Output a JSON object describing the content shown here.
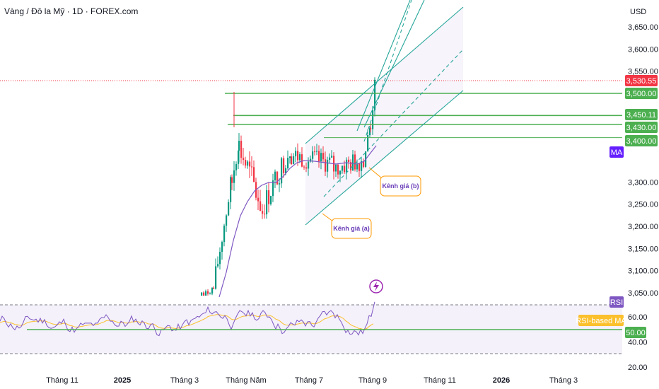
{
  "header": {
    "title": "Vàng / Đô la Mỹ · 1D · FOREX.com",
    "currency": "USD"
  },
  "colors": {
    "up": "#089981",
    "down": "#f23645",
    "ma": "#7e57c2",
    "hline": "#4caf50",
    "channel": "#26a69a",
    "rsi": "#7e57c2",
    "rsi_ma": "#fbc02d",
    "current": "#f23645"
  },
  "chart_data": {
    "type": "candlestick",
    "price_axis": {
      "ticks": [
        "3,650.00",
        "3,600.00",
        "3,550.00",
        "3,300.00",
        "3,250.00",
        "3,200.00",
        "3,150.00",
        "3,100.00",
        "3,050.00"
      ],
      "range": [
        3040,
        3665
      ]
    },
    "rsi_axis": {
      "ticks": [
        "60.00",
        "40.00",
        "20.00"
      ],
      "range": [
        15,
        95
      ]
    },
    "x_axis": {
      "labels": [
        {
          "text": "Tháng 11",
          "bold": false
        },
        {
          "text": "2025",
          "bold": true
        },
        {
          "text": "Tháng 3",
          "bold": false
        },
        {
          "text": "Tháng Năm",
          "bold": false
        },
        {
          "text": "Tháng 7",
          "bold": false
        },
        {
          "text": "Tháng 9",
          "bold": false
        },
        {
          "text": "Tháng 11",
          "bold": false
        },
        {
          "text": "2026",
          "bold": true
        },
        {
          "text": "Tháng 3",
          "bold": false
        }
      ]
    },
    "price_tags": [
      {
        "text": "3,530.55",
        "kind": "current"
      },
      {
        "text": "3,500.00",
        "kind": "level"
      },
      {
        "text": "3,450.11",
        "kind": "level"
      },
      {
        "text": "3,430.00",
        "kind": "level"
      },
      {
        "text": "3,400.00",
        "kind": "level"
      }
    ],
    "horizontal_levels": [
      3500,
      3450.11,
      3430,
      3400
    ],
    "current_price": 3530.55,
    "indicator_tags": {
      "ma": "MA",
      "rsi": "RSI",
      "rsi_ma": "RSI-based MA",
      "rsi_level": "50.00"
    },
    "annotations": [
      {
        "text": "Kênh giá (b)"
      },
      {
        "text": "Kênh giá (a)"
      }
    ]
  }
}
